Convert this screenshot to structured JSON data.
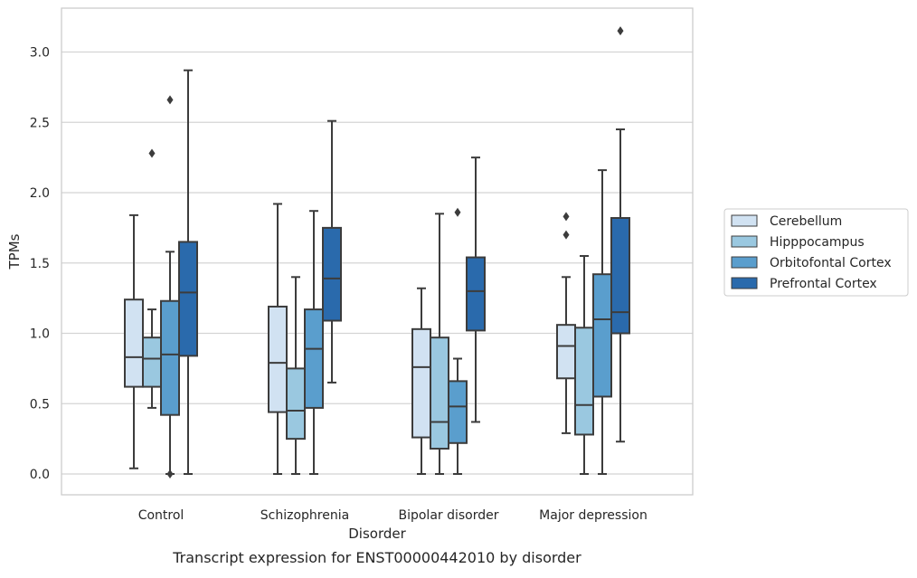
{
  "chart_data": {
    "type": "box",
    "xlabel": "Disorder",
    "ylabel": "TPMs",
    "ylim": [
      -0.15,
      3.3
    ],
    "yticks": [
      "0.0",
      "0.5",
      "1.0",
      "1.5",
      "2.0",
      "2.5",
      "3.0"
    ],
    "categories": [
      "Control",
      "Schizophrenia",
      "Bipolar disorder",
      "Major depression"
    ],
    "grid": true,
    "legend_position": "right",
    "series": [
      {
        "name": "Cerebellum",
        "color": "#d1e2f2",
        "boxes": [
          {
            "whislo": 0.04,
            "q1": 0.62,
            "med": 0.83,
            "q3": 1.24,
            "whishi": 1.84,
            "fliers": []
          },
          {
            "whislo": 0.0,
            "q1": 0.44,
            "med": 0.79,
            "q3": 1.19,
            "whishi": 1.92,
            "fliers": []
          },
          {
            "whislo": 0.0,
            "q1": 0.26,
            "med": 0.76,
            "q3": 1.03,
            "whishi": 1.32,
            "fliers": []
          },
          {
            "whislo": 0.29,
            "q1": 0.68,
            "med": 0.91,
            "q3": 1.06,
            "whishi": 1.4,
            "fliers": [
              1.83,
              1.7
            ]
          }
        ]
      },
      {
        "name": "Hipppocampus",
        "color": "#9ac8e0",
        "boxes": [
          {
            "whislo": 0.47,
            "q1": 0.62,
            "med": 0.82,
            "q3": 0.97,
            "whishi": 1.17,
            "fliers": [
              2.28
            ]
          },
          {
            "whislo": 0.0,
            "q1": 0.25,
            "med": 0.45,
            "q3": 0.75,
            "whishi": 1.4,
            "fliers": []
          },
          {
            "whislo": 0.0,
            "q1": 0.18,
            "med": 0.37,
            "q3": 0.97,
            "whishi": 1.85,
            "fliers": []
          },
          {
            "whislo": 0.0,
            "q1": 0.28,
            "med": 0.49,
            "q3": 1.04,
            "whishi": 1.55,
            "fliers": []
          }
        ]
      },
      {
        "name": "Orbitofontal Cortex",
        "color": "#5a9ecd",
        "boxes": [
          {
            "whislo": 0.0,
            "q1": 0.42,
            "med": 0.85,
            "q3": 1.23,
            "whishi": 1.58,
            "fliers": [
              2.66,
              0.0
            ]
          },
          {
            "whislo": 0.0,
            "q1": 0.47,
            "med": 0.89,
            "q3": 1.17,
            "whishi": 1.87,
            "fliers": []
          },
          {
            "whislo": 0.0,
            "q1": 0.22,
            "med": 0.48,
            "q3": 0.66,
            "whishi": 0.82,
            "fliers": [
              1.86
            ]
          },
          {
            "whislo": 0.0,
            "q1": 0.55,
            "med": 1.1,
            "q3": 1.42,
            "whishi": 2.16,
            "fliers": []
          }
        ]
      },
      {
        "name": "Prefrontal Cortex",
        "color": "#2a6aac",
        "boxes": [
          {
            "whislo": 0.0,
            "q1": 0.84,
            "med": 1.29,
            "q3": 1.65,
            "whishi": 2.87,
            "fliers": []
          },
          {
            "whislo": 0.65,
            "q1": 1.09,
            "med": 1.39,
            "q3": 1.75,
            "whishi": 2.51,
            "fliers": []
          },
          {
            "whislo": 0.37,
            "q1": 1.02,
            "med": 1.3,
            "q3": 1.54,
            "whishi": 2.25,
            "fliers": []
          },
          {
            "whislo": 0.23,
            "q1": 1.0,
            "med": 1.15,
            "q3": 1.82,
            "whishi": 2.45,
            "fliers": [
              3.15
            ]
          }
        ]
      }
    ],
    "caption": "Transcript expression for ENST00000442010 by disorder"
  }
}
